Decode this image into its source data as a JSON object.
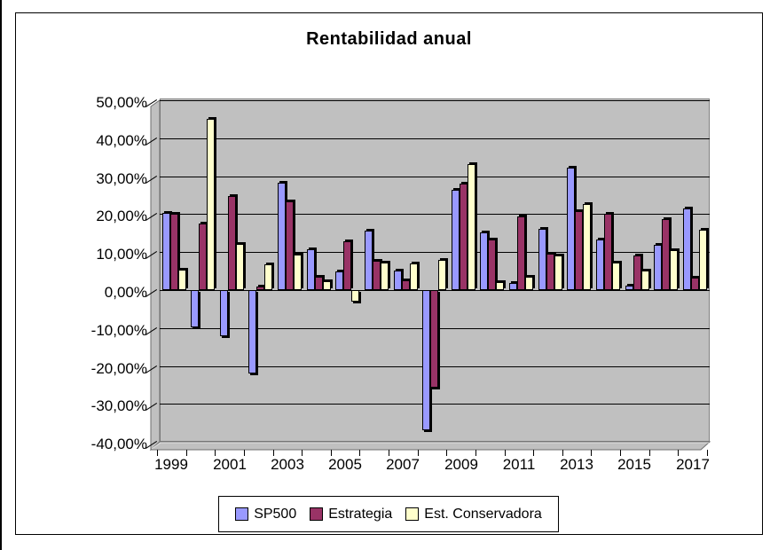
{
  "chart_data": {
    "type": "bar",
    "title": "Rentabilidad anual",
    "categories": [
      1999,
      2000,
      2001,
      2002,
      2003,
      2004,
      2005,
      2006,
      2007,
      2008,
      2009,
      2010,
      2011,
      2012,
      2013,
      2014,
      2015,
      2016,
      2017
    ],
    "series": [
      {
        "name": "SP500",
        "color": "#9999FF",
        "values": [
          20.4,
          -9.7,
          -12.1,
          -22.0,
          28.3,
          10.8,
          4.9,
          15.7,
          5.1,
          -36.8,
          26.3,
          15.1,
          1.8,
          16.1,
          32.3,
          13.3,
          1.2,
          11.9,
          21.5
        ]
      },
      {
        "name": "Estrategia",
        "color": "#993366",
        "values": [
          20.0,
          17.5,
          24.8,
          1.0,
          23.3,
          3.5,
          12.9,
          7.8,
          2.5,
          -25.7,
          28.1,
          13.3,
          19.5,
          9.6,
          20.8,
          20.1,
          9.1,
          18.7,
          3.3
        ]
      },
      {
        "name": "Est. Conservadora",
        "color": "#FFFFCC",
        "values": [
          5.3,
          45.0,
          12.2,
          6.8,
          9.3,
          2.3,
          -3.0,
          7.2,
          7.0,
          8.0,
          33.2,
          2.1,
          3.6,
          9.2,
          22.7,
          7.3,
          5.1,
          10.5,
          15.8
        ]
      }
    ],
    "xlabel": "",
    "ylabel": "",
    "ylim": [
      -40,
      50
    ],
    "y_tick_step": 10,
    "y_tick_labels": [
      "50,00%",
      "40,00%",
      "30,00%",
      "20,00%",
      "10,00%",
      "0,00%",
      "-10,00%",
      "-20,00%",
      "-30,00%",
      "-40,00%"
    ],
    "x_tick_labels_visible": [
      "1999",
      "2001",
      "2003",
      "2005",
      "2007",
      "2009",
      "2011",
      "2013",
      "2015",
      "2017"
    ],
    "grid": true,
    "legend_position": "bottom",
    "values_format": "percent_comma_decimal"
  },
  "colors": {
    "plot_background": "#C0C0C0",
    "plot_border": "#808080",
    "frame_edge": "#6e6e6e",
    "floor_highlight": "#e6e6e6",
    "gridline": "#000000",
    "chart_border": "#000000"
  }
}
